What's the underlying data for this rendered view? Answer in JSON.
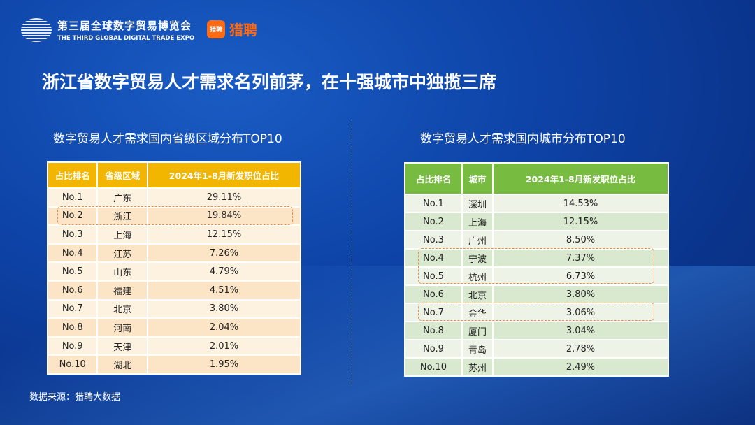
{
  "header": {
    "expo_cn": "第三届全球数字贸易博览会",
    "expo_en": "THE THIRD GLOBAL DIGITAL TRADE EXPO",
    "partner_icon": "猎聘",
    "partner": "猎聘"
  },
  "title": "浙江省数字贸易人才需求名列前茅，在十强城市中独揽三席",
  "left": {
    "subtitle": "数字贸易人才需求国内省级区域分布TOP10",
    "headers": [
      "占比排名",
      "省级区域",
      "2024年1-8月新发职位占比"
    ],
    "rows": [
      [
        "No.1",
        "广东",
        "29.11%"
      ],
      [
        "No.2",
        "浙江",
        "19.84%"
      ],
      [
        "No.3",
        "上海",
        "12.15%"
      ],
      [
        "No.4",
        "江苏",
        "7.26%"
      ],
      [
        "No.5",
        "山东",
        "4.79%"
      ],
      [
        "No.6",
        "福建",
        "4.51%"
      ],
      [
        "No.7",
        "北京",
        "3.80%"
      ],
      [
        "No.8",
        "河南",
        "2.04%"
      ],
      [
        "No.9",
        "天津",
        "2.01%"
      ],
      [
        "No.10",
        "湖北",
        "1.95%"
      ]
    ],
    "highlight_color": "#f08a3c",
    "header_color": "#f2b600"
  },
  "right": {
    "subtitle": "数字贸易人才需求国内城市分布TOP10",
    "headers": [
      "占比排名",
      "城市",
      "2024年1-8月新发职位占比"
    ],
    "rows": [
      [
        "No.1",
        "深圳",
        "14.53%"
      ],
      [
        "No.2",
        "上海",
        "12.15%"
      ],
      [
        "No.3",
        "广州",
        "8.50%"
      ],
      [
        "No.4",
        "宁波",
        "7.37%"
      ],
      [
        "No.5",
        "杭州",
        "6.73%"
      ],
      [
        "No.6",
        "北京",
        "3.80%"
      ],
      [
        "No.7",
        "金华",
        "3.06%"
      ],
      [
        "No.8",
        "厦门",
        "3.04%"
      ],
      [
        "No.9",
        "青岛",
        "2.78%"
      ],
      [
        "No.10",
        "苏州",
        "2.49%"
      ]
    ],
    "header_color": "#77bb41"
  },
  "source": "数据来源：猎聘大数据"
}
